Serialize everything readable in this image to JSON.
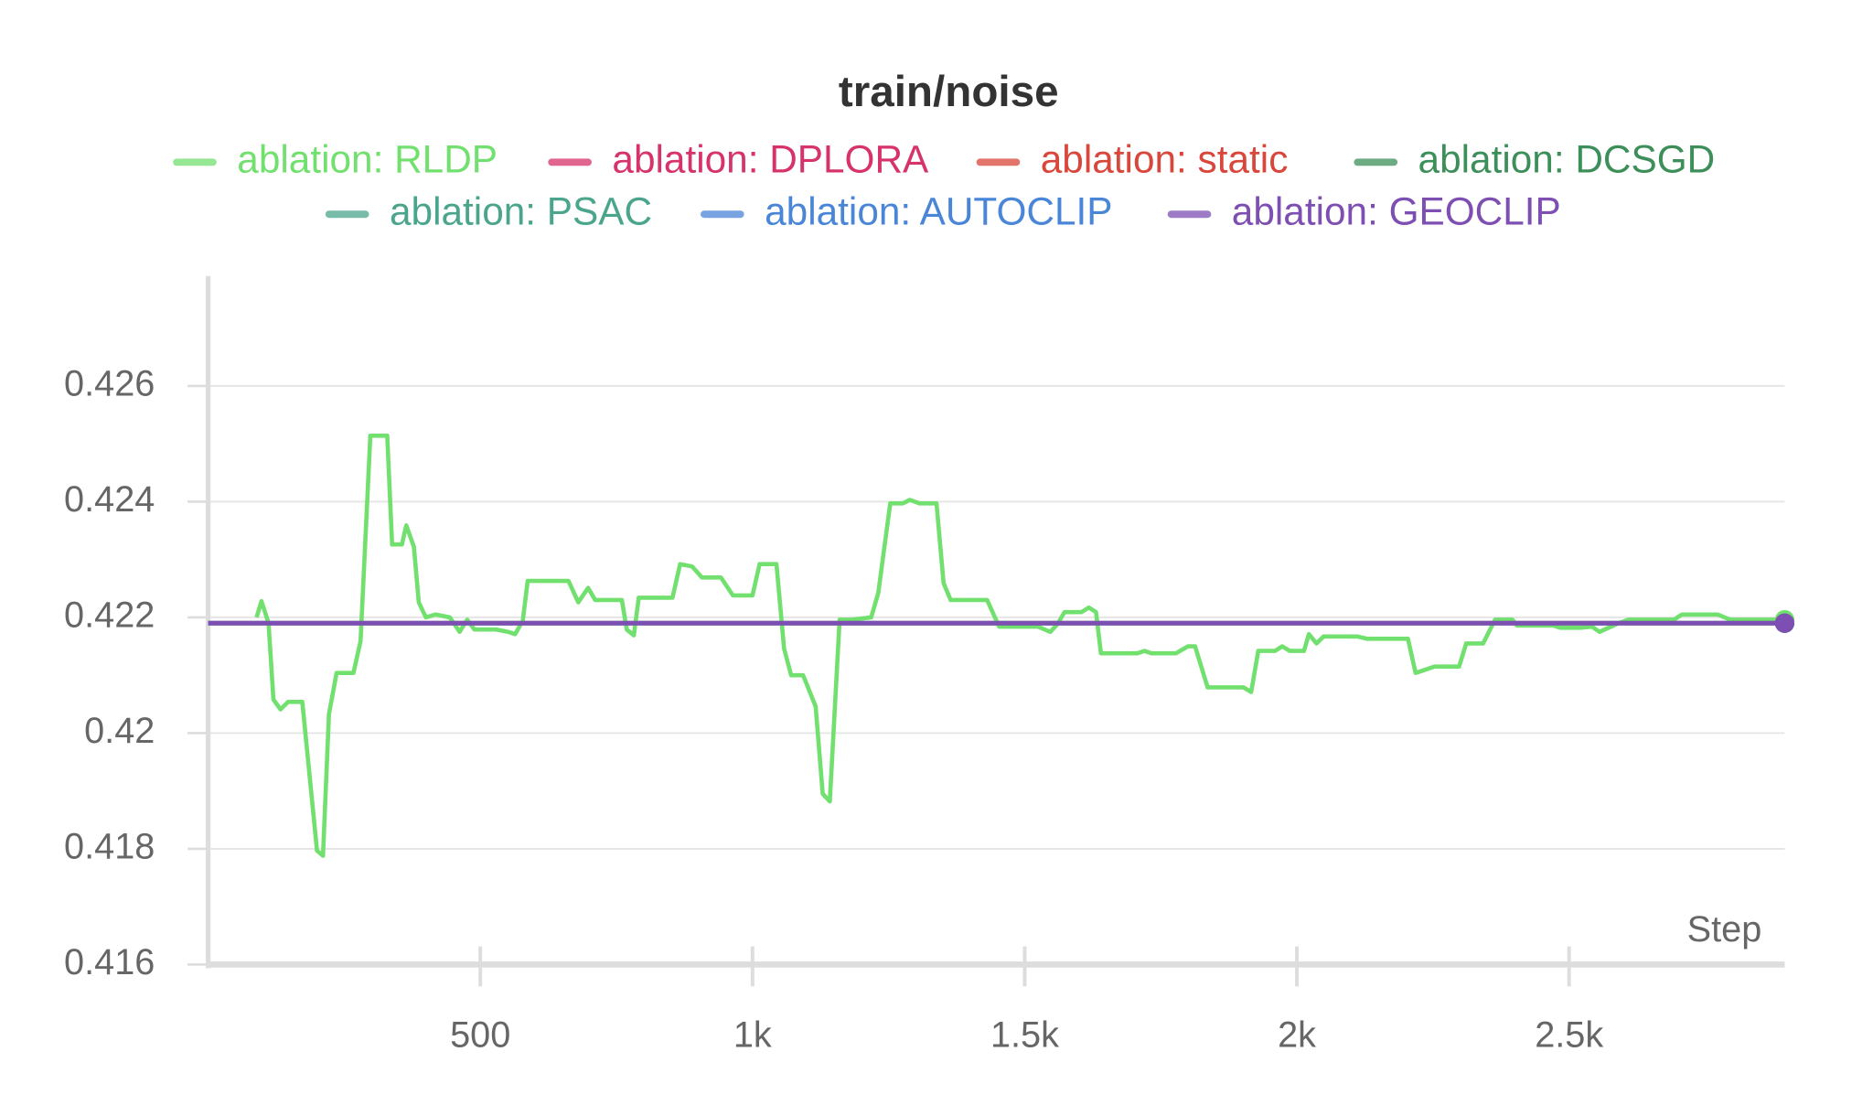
{
  "chart_data": {
    "type": "line",
    "title": "train/noise",
    "xlabel": "Step",
    "xlim": [
      0,
      2896
    ],
    "ylim": [
      0.416,
      0.4279
    ],
    "xticks": [
      500,
      {
        "value": 1000,
        "label": "1k"
      },
      {
        "value": 1500,
        "label": "1.5k"
      },
      {
        "value": 2000,
        "label": "2k"
      },
      {
        "value": 2500,
        "label": "2.5k"
      }
    ],
    "yticks": [
      0.416,
      0.418,
      0.42,
      0.422,
      0.424,
      0.426
    ],
    "grid": true,
    "series": [
      {
        "name": "ablation: RLDP",
        "color": "#72e06f",
        "x": [
          89,
          98,
          111,
          120,
          133,
          147,
          173,
          200,
          211,
          222,
          236,
          267,
          280,
          298,
          329,
          338,
          356,
          364,
          378,
          387,
          400,
          418,
          444,
          462,
          476,
          489,
          529,
          551,
          564,
          578,
          587,
          662,
          680,
          698,
          711,
          760,
          769,
          782,
          791,
          853,
          867,
          889,
          907,
          942,
          964,
          1000,
          1013,
          1044,
          1058,
          1071,
          1093,
          1116,
          1129,
          1142,
          1160,
          1182,
          1218,
          1231,
          1253,
          1276,
          1289,
          1307,
          1338,
          1351,
          1364,
          1431,
          1453,
          1471,
          1524,
          1547,
          1560,
          1573,
          1604,
          1618,
          1631,
          1640,
          1707,
          1720,
          1733,
          1778,
          1800,
          1813,
          1836,
          1902,
          1916,
          1929,
          1960,
          1973,
          1987,
          2013,
          2022,
          2036,
          2049,
          2111,
          2129,
          2204,
          2218,
          2231,
          2253,
          2298,
          2311,
          2342,
          2364,
          2396,
          2404,
          2471,
          2484,
          2520,
          2542,
          2556,
          2591,
          2609,
          2693,
          2707,
          2773,
          2796,
          2896
        ],
        "values": [
          0.422,
          0.42228,
          0.4219,
          0.42058,
          0.42041,
          0.42054,
          0.42054,
          0.41797,
          0.41788,
          0.42033,
          0.42104,
          0.42104,
          0.42159,
          0.42514,
          0.42514,
          0.42326,
          0.42326,
          0.42359,
          0.42322,
          0.42226,
          0.422,
          0.42205,
          0.422,
          0.42175,
          0.42196,
          0.42179,
          0.42179,
          0.42175,
          0.42171,
          0.42194,
          0.42263,
          0.42263,
          0.42226,
          0.42251,
          0.4223,
          0.4223,
          0.42179,
          0.42169,
          0.42234,
          0.42234,
          0.42292,
          0.42288,
          0.42269,
          0.42269,
          0.42238,
          0.42238,
          0.42292,
          0.42292,
          0.42146,
          0.421,
          0.421,
          0.42046,
          0.41895,
          0.41882,
          0.42196,
          0.42196,
          0.422,
          0.42242,
          0.42397,
          0.42397,
          0.42403,
          0.42397,
          0.42397,
          0.42259,
          0.4223,
          0.4223,
          0.42184,
          0.42184,
          0.42184,
          0.42175,
          0.42188,
          0.42209,
          0.42209,
          0.42217,
          0.42209,
          0.42138,
          0.42138,
          0.42142,
          0.42138,
          0.42138,
          0.4215,
          0.4215,
          0.42079,
          0.42079,
          0.42071,
          0.42142,
          0.42142,
          0.4215,
          0.42142,
          0.42142,
          0.42171,
          0.42155,
          0.42167,
          0.42167,
          0.42163,
          0.42163,
          0.42104,
          0.42108,
          0.42115,
          0.42115,
          0.42155,
          0.42155,
          0.42196,
          0.42196,
          0.42186,
          0.42186,
          0.42182,
          0.42182,
          0.42184,
          0.42175,
          0.4219,
          0.42196,
          0.42196,
          0.42205,
          0.42205,
          0.42196,
          0.42196
        ]
      },
      {
        "name": "ablation: DPLORA",
        "color": "#d6336c",
        "x": [
          0,
          2896
        ],
        "values": [
          0.4219,
          0.4219
        ]
      },
      {
        "name": "ablation: static",
        "color": "#d9463b",
        "x": [
          0,
          2896
        ],
        "values": [
          0.4219,
          0.4219
        ]
      },
      {
        "name": "ablation: DCSGD",
        "color": "#3d8f5a",
        "x": [
          0,
          2896
        ],
        "values": [
          0.4219,
          0.4219
        ]
      },
      {
        "name": "ablation: PSAC",
        "color": "#4aa58c",
        "x": [
          0,
          2896
        ],
        "values": [
          0.4219,
          0.4219
        ]
      },
      {
        "name": "ablation: AUTOCLIP",
        "color": "#4a86d8",
        "x": [
          0,
          2896
        ],
        "values": [
          0.4219,
          0.4219
        ]
      },
      {
        "name": "ablation: GEOCLIP",
        "color": "#7e4fb3",
        "x": [
          0,
          2896
        ],
        "values": [
          0.4219,
          0.4219
        ]
      }
    ]
  }
}
